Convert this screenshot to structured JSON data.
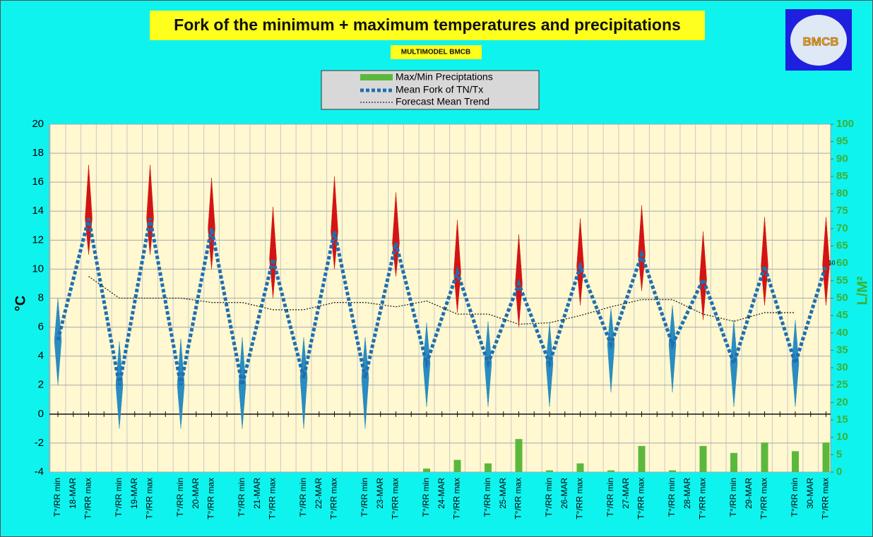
{
  "chart_data": {
    "type": "fork",
    "title": "Fork of the minimum + maximum temperatures and precipitations",
    "subtitle": "MULTIMODEL BMCB",
    "logo": "BMCB",
    "y_label": "°C",
    "y2_label": "L/M²",
    "ylim": [
      -4,
      20
    ],
    "yticks": [
      -4,
      -2,
      0,
      2,
      4,
      6,
      8,
      10,
      12,
      14,
      16,
      18,
      20
    ],
    "y2lim": [
      0,
      100
    ],
    "y2ticks": [
      0,
      5,
      10,
      15,
      20,
      25,
      30,
      35,
      40,
      45,
      50,
      55,
      60,
      65,
      70,
      75,
      80,
      85,
      90,
      95,
      100
    ],
    "grid": true,
    "min_label": "T°/RR min",
    "max_label": "T°/RR max",
    "legend": {
      "precip": "Max/Min Preciptations",
      "fork": "Mean Fork of TN/Tx",
      "trend": "Forecast Mean Trend"
    },
    "colors": {
      "precip": "#5cb83c",
      "fork": "#1f6fb0",
      "tn": "#2a8cc0",
      "tx": "#d41414",
      "trend": "#222222"
    },
    "annotation": "10",
    "days": [
      {
        "date": "18-MAR",
        "tn": 5.1,
        "tx": 13.5,
        "tn_range": [
          2,
          8
        ],
        "tx_range": [
          11,
          17.2
        ],
        "rr_min": 0,
        "rr_max": 0,
        "trend_min": null,
        "trend_max": 9.5
      },
      {
        "date": "19-MAR",
        "tn": 2,
        "tx": 13.5,
        "tn_range": [
          -1,
          5
        ],
        "tx_range": [
          11,
          17.2
        ],
        "rr_min": 0,
        "rr_max": 0,
        "trend_min": 8,
        "trend_max": 8
      },
      {
        "date": "20-MAR",
        "tn": 2,
        "tx": 12.8,
        "tn_range": [
          -1,
          5.2
        ],
        "tx_range": [
          10,
          16.3
        ],
        "rr_min": 0,
        "rr_max": 0,
        "trend_min": 8,
        "trend_max": 7.7
      },
      {
        "date": "21-MAR",
        "tn": 2,
        "tx": 10.7,
        "tn_range": [
          -1,
          5.3
        ],
        "tx_range": [
          8,
          14.3
        ],
        "rr_min": 0,
        "rr_max": 0,
        "trend_min": 7.7,
        "trend_max": 7.2
      },
      {
        "date": "22-MAR",
        "tn": 2.5,
        "tx": 12.6,
        "tn_range": [
          -1,
          5.3
        ],
        "tx_range": [
          10,
          16.4
        ],
        "rr_min": 0,
        "rr_max": 0,
        "trend_min": 7.2,
        "trend_max": 7.7
      },
      {
        "date": "23-MAR",
        "tn": 2.5,
        "tx": 11.8,
        "tn_range": [
          -1,
          5.3
        ],
        "tx_range": [
          9.5,
          15.3
        ],
        "rr_min": 0,
        "rr_max": 0,
        "trend_min": 7.7,
        "trend_max": 7.4
      },
      {
        "date": "24-MAR",
        "tn": 3.5,
        "tx": 9.8,
        "tn_range": [
          0.5,
          6.3
        ],
        "tx_range": [
          7,
          13.4
        ],
        "rr_min": 1,
        "rr_max": 3.5,
        "trend_min": 7.8,
        "trend_max": 6.9
      },
      {
        "date": "25-MAR",
        "tn": 3.5,
        "tx": 9,
        "tn_range": [
          0.5,
          6.4
        ],
        "tx_range": [
          6,
          12.4
        ],
        "rr_min": 2.5,
        "rr_max": 9.5,
        "trend_min": 6.9,
        "trend_max": 6.2
      },
      {
        "date": "26-MAR",
        "tn": 3.5,
        "tx": 10.2,
        "tn_range": [
          0.5,
          6.3
        ],
        "tx_range": [
          7.5,
          13.5
        ],
        "rr_min": 0.5,
        "rr_max": 2.5,
        "trend_min": 6.3,
        "trend_max": 6.8
      },
      {
        "date": "27-MAR",
        "tn": 4.8,
        "tx": 11,
        "tn_range": [
          1.5,
          7.3
        ],
        "tx_range": [
          8.5,
          14.4
        ],
        "rr_min": 0.5,
        "rr_max": 7.5,
        "trend_min": 7.4,
        "trend_max": 7.9
      },
      {
        "date": "28-MAR",
        "tn": 4.8,
        "tx": 9.3,
        "tn_range": [
          1.5,
          7.5
        ],
        "tx_range": [
          6.5,
          12.6
        ],
        "rr_min": 0.5,
        "rr_max": 7.5,
        "trend_min": 7.9,
        "trend_max": 6.9
      },
      {
        "date": "29-MAR",
        "tn": 3.5,
        "tx": 10.2,
        "tn_range": [
          0.5,
          6.5
        ],
        "tx_range": [
          7.5,
          13.6
        ],
        "rr_min": 5.5,
        "rr_max": 8.5,
        "trend_min": 6.4,
        "trend_max": 7
      },
      {
        "date": "30-MAR",
        "tn": 3.5,
        "tx": 10.3,
        "tn_range": [
          0.5,
          6.5
        ],
        "tx_range": [
          7.5,
          13.6
        ],
        "rr_min": 6,
        "rr_max": 8.5,
        "trend_min": 7,
        "trend_max": null
      }
    ]
  }
}
